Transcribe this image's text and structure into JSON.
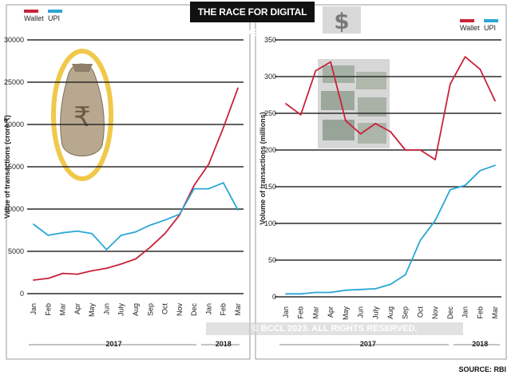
{
  "title": "THE RACE FOR DIGITAL PAYMENTS",
  "source": "SOURCE: RBI",
  "watermark": "© BCCL 2023. ALL RIGHTS RESERVED.",
  "colors": {
    "wallet": "#c8233a",
    "upi": "#2aa7d4",
    "grid": "#2b2b2b"
  },
  "chart_data": [
    {
      "type": "line",
      "ylabel": "Value of transactions (crore ₹)",
      "xlabel": "",
      "ylim": [
        0,
        30000
      ],
      "yticks": [
        0,
        5000,
        10000,
        15000,
        20000,
        25000,
        30000
      ],
      "categories": [
        "Jan",
        "Feb",
        "Mar",
        "Apr",
        "May",
        "Jun",
        "July",
        "Aug",
        "Sep",
        "Oct",
        "Nov",
        "Dec",
        "Jan",
        "Feb",
        "Mar"
      ],
      "year_groups": [
        {
          "label": "2017",
          "span": [
            0,
            11
          ]
        },
        {
          "label": "2018",
          "span": [
            12,
            14
          ]
        }
      ],
      "legend": [
        "Wallet",
        "UPI"
      ],
      "legend_position": "top-left",
      "grid": true,
      "series": [
        {
          "name": "Wallet",
          "values": [
            1600,
            1800,
            2400,
            2300,
            2700,
            3000,
            3500,
            4100,
            5500,
            7100,
            9300,
            12800,
            15300,
            19600,
            24300
          ]
        },
        {
          "name": "UPI",
          "values": [
            8200,
            6900,
            7200,
            7400,
            7100,
            5200,
            6900,
            7300,
            8100,
            8700,
            9400,
            12400,
            12400,
            13100,
            9900
          ]
        }
      ]
    },
    {
      "type": "line",
      "ylabel": "Volume of transactions (millions)",
      "xlabel": "",
      "ylim": [
        0,
        350
      ],
      "yticks": [
        0,
        50,
        100,
        150,
        200,
        250,
        300,
        350
      ],
      "categories": [
        "Jan",
        "Feb",
        "Mar",
        "Apr",
        "May",
        "Jun",
        "July",
        "Aug",
        "Sep",
        "Oct",
        "Nov",
        "Dec",
        "Jan",
        "Feb",
        "Mar"
      ],
      "year_groups": [
        {
          "label": "2017",
          "span": [
            0,
            11
          ]
        },
        {
          "label": "2018",
          "span": [
            12,
            14
          ]
        }
      ],
      "legend": [
        "Wallet",
        "UPI"
      ],
      "legend_position": "top-right",
      "grid": true,
      "series": [
        {
          "name": "Wallet",
          "values": [
            263,
            248,
            308,
            320,
            240,
            222,
            236,
            225,
            200,
            200,
            187,
            290,
            327,
            310,
            267
          ]
        },
        {
          "name": "UPI",
          "values": [
            4,
            4,
            6,
            6,
            9,
            10,
            11,
            17,
            30,
            77,
            104,
            146,
            152,
            172,
            179
          ]
        }
      ]
    }
  ]
}
